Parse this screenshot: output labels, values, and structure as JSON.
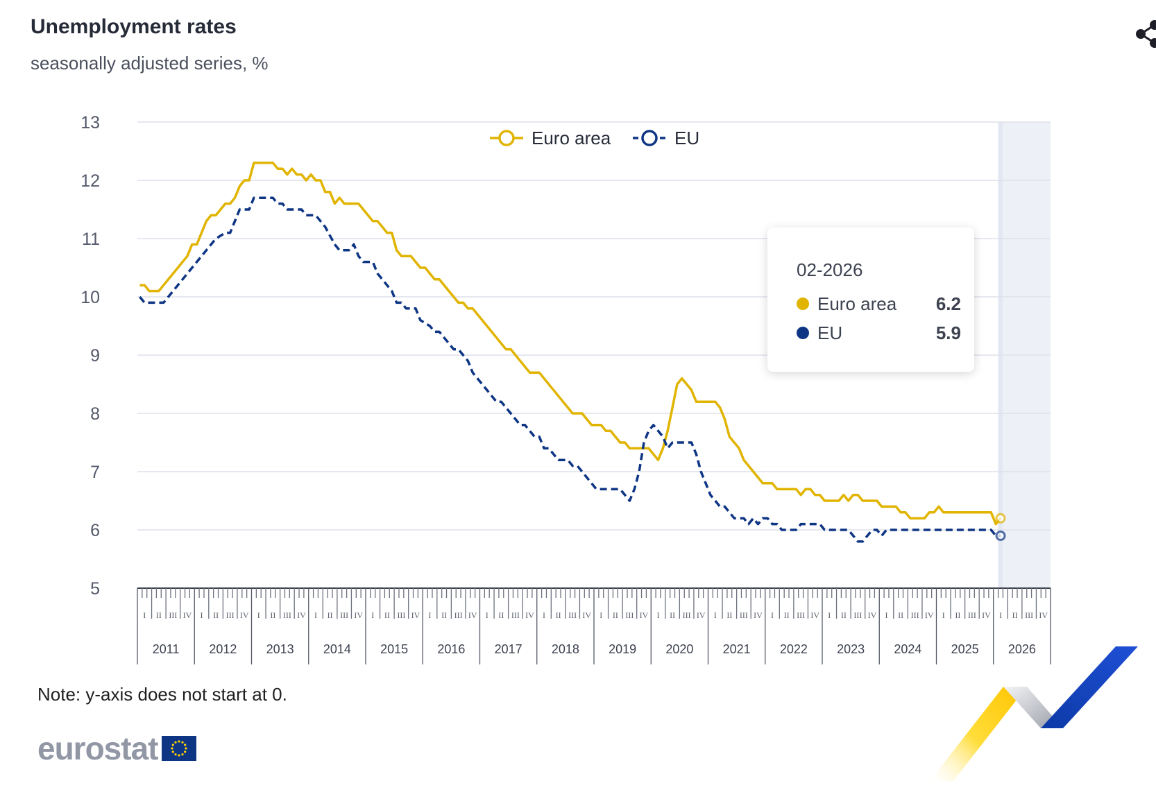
{
  "title": "Unemployment rates",
  "subtitle": "seasonally adjusted series, %",
  "note": "Note: y-axis does not start at 0.",
  "logo_text": "eurostat",
  "share_icon": "share-icon",
  "colors": {
    "euro_area": "#e0b400",
    "eu": "#0e3584",
    "grid": "#dde1ea",
    "highlight_band": "#eef0f7",
    "axis_text": "#54596a"
  },
  "tooltip": {
    "date": "02-2026",
    "rows": [
      {
        "name": "Euro area",
        "value": "6.2",
        "color": "#e0b400"
      },
      {
        "name": "EU",
        "value": "5.9",
        "color": "#0e3584"
      }
    ]
  },
  "chart_data": {
    "type": "line",
    "title": "Unemployment rates",
    "subtitle": "seasonally adjusted series, %",
    "ylim": [
      5,
      13
    ],
    "yticks": [
      "5",
      "6",
      "7",
      "8",
      "9",
      "10",
      "11",
      "12",
      "13"
    ],
    "grid": true,
    "legend_position": "top-center",
    "quarter_labels": [
      "I",
      "II",
      "III",
      "IV"
    ],
    "years": [
      "2011",
      "2012",
      "2013",
      "2014",
      "2015",
      "2016",
      "2017",
      "2018",
      "2019",
      "2020",
      "2021",
      "2022",
      "2023",
      "2024",
      "2025",
      "2026"
    ],
    "x_range": [
      "01-2011",
      "12-2026"
    ],
    "highlight": "02-2026",
    "series": [
      {
        "name": "Euro area",
        "style": "solid",
        "points": [
          [
            "01-2011",
            10.2
          ],
          [
            "02-2011",
            10.2
          ],
          [
            "03-2011",
            10.1
          ],
          [
            "05-2011",
            10.1
          ],
          [
            "06-2011",
            10.2
          ],
          [
            "09-2011",
            10.5
          ],
          [
            "11-2011",
            10.7
          ],
          [
            "12-2011",
            10.9
          ],
          [
            "01-2012",
            10.9
          ],
          [
            "02-2012",
            11.1
          ],
          [
            "03-2012",
            11.3
          ],
          [
            "04-2012",
            11.4
          ],
          [
            "05-2012",
            11.4
          ],
          [
            "06-2012",
            11.5
          ],
          [
            "07-2012",
            11.6
          ],
          [
            "08-2012",
            11.6
          ],
          [
            "09-2012",
            11.7
          ],
          [
            "10-2012",
            11.9
          ],
          [
            "11-2012",
            12.0
          ],
          [
            "12-2012",
            12.0
          ],
          [
            "01-2013",
            12.3
          ],
          [
            "05-2013",
            12.3
          ],
          [
            "06-2013",
            12.2
          ],
          [
            "07-2013",
            12.2
          ],
          [
            "08-2013",
            12.1
          ],
          [
            "09-2013",
            12.2
          ],
          [
            "10-2013",
            12.1
          ],
          [
            "11-2013",
            12.1
          ],
          [
            "12-2013",
            12.0
          ],
          [
            "01-2014",
            12.1
          ],
          [
            "02-2014",
            12.0
          ],
          [
            "03-2014",
            12.0
          ],
          [
            "04-2014",
            11.8
          ],
          [
            "05-2014",
            11.8
          ],
          [
            "06-2014",
            11.6
          ],
          [
            "07-2014",
            11.7
          ],
          [
            "08-2014",
            11.6
          ],
          [
            "11-2014",
            11.6
          ],
          [
            "12-2014",
            11.5
          ],
          [
            "01-2015",
            11.4
          ],
          [
            "02-2015",
            11.3
          ],
          [
            "03-2015",
            11.3
          ],
          [
            "04-2015",
            11.2
          ],
          [
            "05-2015",
            11.1
          ],
          [
            "06-2015",
            11.1
          ],
          [
            "07-2015",
            10.8
          ],
          [
            "08-2015",
            10.7
          ],
          [
            "10-2015",
            10.7
          ],
          [
            "11-2015",
            10.6
          ],
          [
            "12-2015",
            10.5
          ],
          [
            "01-2016",
            10.5
          ],
          [
            "02-2016",
            10.4
          ],
          [
            "03-2016",
            10.3
          ],
          [
            "04-2016",
            10.3
          ],
          [
            "06-2016",
            10.1
          ],
          [
            "08-2016",
            9.9
          ],
          [
            "09-2016",
            9.9
          ],
          [
            "10-2016",
            9.8
          ],
          [
            "11-2016",
            9.8
          ],
          [
            "02-2017",
            9.5
          ],
          [
            "05-2017",
            9.2
          ],
          [
            "06-2017",
            9.1
          ],
          [
            "07-2017",
            9.1
          ],
          [
            "10-2017",
            8.8
          ],
          [
            "11-2017",
            8.7
          ],
          [
            "01-2018",
            8.7
          ],
          [
            "05-2018",
            8.3
          ],
          [
            "08-2018",
            8.0
          ],
          [
            "10-2018",
            8.0
          ],
          [
            "11-2018",
            7.9
          ],
          [
            "12-2018",
            7.8
          ],
          [
            "02-2019",
            7.8
          ],
          [
            "03-2019",
            7.7
          ],
          [
            "04-2019",
            7.7
          ],
          [
            "05-2019",
            7.6
          ],
          [
            "06-2019",
            7.5
          ],
          [
            "07-2019",
            7.5
          ],
          [
            "08-2019",
            7.4
          ],
          [
            "12-2019",
            7.4
          ],
          [
            "01-2020",
            7.3
          ],
          [
            "02-2020",
            7.2
          ],
          [
            "03-2020",
            7.4
          ],
          [
            "04-2020",
            7.7
          ],
          [
            "05-2020",
            8.1
          ],
          [
            "06-2020",
            8.5
          ],
          [
            "07-2020",
            8.6
          ],
          [
            "08-2020",
            8.5
          ],
          [
            "09-2020",
            8.4
          ],
          [
            "10-2020",
            8.2
          ],
          [
            "02-2021",
            8.2
          ],
          [
            "03-2021",
            8.1
          ],
          [
            "04-2021",
            7.9
          ],
          [
            "05-2021",
            7.6
          ],
          [
            "06-2021",
            7.5
          ],
          [
            "07-2021",
            7.4
          ],
          [
            "08-2021",
            7.2
          ],
          [
            "09-2021",
            7.1
          ],
          [
            "10-2021",
            7.0
          ],
          [
            "11-2021",
            6.9
          ],
          [
            "12-2021",
            6.8
          ],
          [
            "02-2022",
            6.8
          ],
          [
            "03-2022",
            6.7
          ],
          [
            "07-2022",
            6.7
          ],
          [
            "08-2022",
            6.6
          ],
          [
            "09-2022",
            6.7
          ],
          [
            "10-2022",
            6.7
          ],
          [
            "11-2022",
            6.6
          ],
          [
            "12-2022",
            6.6
          ],
          [
            "01-2023",
            6.5
          ],
          [
            "04-2023",
            6.5
          ],
          [
            "05-2023",
            6.6
          ],
          [
            "06-2023",
            6.5
          ],
          [
            "07-2023",
            6.6
          ],
          [
            "08-2023",
            6.6
          ],
          [
            "09-2023",
            6.5
          ],
          [
            "12-2023",
            6.5
          ],
          [
            "01-2024",
            6.4
          ],
          [
            "04-2024",
            6.4
          ],
          [
            "05-2024",
            6.3
          ],
          [
            "06-2024",
            6.3
          ],
          [
            "07-2024",
            6.2
          ],
          [
            "10-2024",
            6.2
          ],
          [
            "11-2024",
            6.3
          ],
          [
            "12-2024",
            6.3
          ],
          [
            "01-2025",
            6.4
          ],
          [
            "02-2025",
            6.3
          ],
          [
            "12-2025",
            6.3
          ],
          [
            "01-2026",
            6.1
          ],
          [
            "02-2026",
            6.2
          ]
        ]
      },
      {
        "name": "EU",
        "style": "dashed",
        "points": [
          [
            "01-2011",
            10.0
          ],
          [
            "02-2011",
            9.9
          ],
          [
            "06-2011",
            9.9
          ],
          [
            "07-2011",
            10.0
          ],
          [
            "09-2011",
            10.2
          ],
          [
            "12-2011",
            10.5
          ],
          [
            "03-2012",
            10.8
          ],
          [
            "05-2012",
            11.0
          ],
          [
            "07-2012",
            11.1
          ],
          [
            "08-2012",
            11.1
          ],
          [
            "09-2012",
            11.3
          ],
          [
            "10-2012",
            11.5
          ],
          [
            "12-2012",
            11.5
          ],
          [
            "01-2013",
            11.7
          ],
          [
            "05-2013",
            11.7
          ],
          [
            "06-2013",
            11.6
          ],
          [
            "07-2013",
            11.6
          ],
          [
            "08-2013",
            11.5
          ],
          [
            "11-2013",
            11.5
          ],
          [
            "12-2013",
            11.4
          ],
          [
            "02-2014",
            11.4
          ],
          [
            "03-2014",
            11.3
          ],
          [
            "04-2014",
            11.2
          ],
          [
            "06-2014",
            10.9
          ],
          [
            "07-2014",
            10.8
          ],
          [
            "09-2014",
            10.8
          ],
          [
            "10-2014",
            10.9
          ],
          [
            "11-2014",
            10.7
          ],
          [
            "12-2014",
            10.6
          ],
          [
            "02-2015",
            10.6
          ],
          [
            "03-2015",
            10.4
          ],
          [
            "04-2015",
            10.3
          ],
          [
            "05-2015",
            10.2
          ],
          [
            "06-2015",
            10.1
          ],
          [
            "07-2015",
            9.9
          ],
          [
            "08-2015",
            9.9
          ],
          [
            "09-2015",
            9.8
          ],
          [
            "11-2015",
            9.8
          ],
          [
            "12-2015",
            9.6
          ],
          [
            "02-2016",
            9.5
          ],
          [
            "03-2016",
            9.4
          ],
          [
            "04-2016",
            9.4
          ],
          [
            "06-2016",
            9.2
          ],
          [
            "07-2016",
            9.1
          ],
          [
            "08-2016",
            9.1
          ],
          [
            "09-2016",
            9.0
          ],
          [
            "10-2016",
            8.9
          ],
          [
            "11-2016",
            8.7
          ],
          [
            "12-2016",
            8.6
          ],
          [
            "01-2017",
            8.5
          ],
          [
            "02-2017",
            8.4
          ],
          [
            "03-2017",
            8.3
          ],
          [
            "04-2017",
            8.2
          ],
          [
            "05-2017",
            8.2
          ],
          [
            "06-2017",
            8.1
          ],
          [
            "07-2017",
            8.0
          ],
          [
            "08-2017",
            7.9
          ],
          [
            "09-2017",
            7.8
          ],
          [
            "10-2017",
            7.8
          ],
          [
            "11-2017",
            7.7
          ],
          [
            "12-2017",
            7.6
          ],
          [
            "01-2018",
            7.6
          ],
          [
            "02-2018",
            7.4
          ],
          [
            "03-2018",
            7.4
          ],
          [
            "05-2018",
            7.2
          ],
          [
            "07-2018",
            7.2
          ],
          [
            "08-2018",
            7.1
          ],
          [
            "09-2018",
            7.1
          ],
          [
            "10-2018",
            7.0
          ],
          [
            "11-2018",
            6.9
          ],
          [
            "12-2018",
            6.8
          ],
          [
            "01-2019",
            6.7
          ],
          [
            "02-2019",
            6.7
          ],
          [
            "06-2019",
            6.7
          ],
          [
            "07-2019",
            6.6
          ],
          [
            "08-2019",
            6.5
          ],
          [
            "09-2019",
            6.7
          ],
          [
            "10-2019",
            7.0
          ],
          [
            "11-2019",
            7.5
          ],
          [
            "12-2019",
            7.7
          ],
          [
            "01-2020",
            7.8
          ],
          [
            "02-2020",
            7.7
          ],
          [
            "03-2020",
            7.6
          ],
          [
            "04-2020",
            7.4
          ],
          [
            "05-2020",
            7.5
          ],
          [
            "09-2020",
            7.5
          ],
          [
            "10-2020",
            7.3
          ],
          [
            "11-2020",
            7.0
          ],
          [
            "12-2020",
            6.8
          ],
          [
            "01-2021",
            6.6
          ],
          [
            "02-2021",
            6.5
          ],
          [
            "03-2021",
            6.4
          ],
          [
            "04-2021",
            6.4
          ],
          [
            "05-2021",
            6.3
          ],
          [
            "06-2021",
            6.2
          ],
          [
            "08-2021",
            6.2
          ],
          [
            "09-2021",
            6.1
          ],
          [
            "10-2021",
            6.2
          ],
          [
            "11-2021",
            6.1
          ],
          [
            "12-2021",
            6.2
          ],
          [
            "01-2022",
            6.2
          ],
          [
            "02-2022",
            6.1
          ],
          [
            "03-2022",
            6.1
          ],
          [
            "04-2022",
            6.0
          ],
          [
            "07-2022",
            6.0
          ],
          [
            "08-2022",
            6.1
          ],
          [
            "12-2022",
            6.1
          ],
          [
            "01-2023",
            6.0
          ],
          [
            "06-2023",
            6.0
          ],
          [
            "07-2023",
            5.9
          ],
          [
            "08-2023",
            5.8
          ],
          [
            "09-2023",
            5.8
          ],
          [
            "10-2023",
            5.9
          ],
          [
            "11-2023",
            6.0
          ],
          [
            "12-2023",
            6.0
          ],
          [
            "01-2024",
            5.9
          ],
          [
            "02-2024",
            6.0
          ],
          [
            "12-2025",
            6.0
          ],
          [
            "01-2026",
            5.9
          ],
          [
            "02-2026",
            5.9
          ]
        ]
      }
    ]
  }
}
